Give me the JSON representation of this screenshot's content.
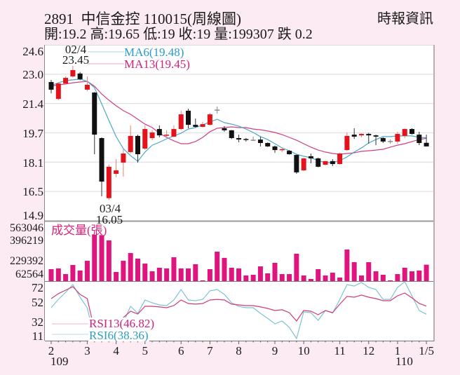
{
  "header": {
    "title": "2891  中信金控 110015(周線圖)",
    "source": "時報資訊",
    "quote": "開:19.2 高:19.65 低:19 收:19 量:199307 跌 0.2"
  },
  "colors": {
    "background": "#fcebf2",
    "plot_background": "#ffffff",
    "up": "#e3121b",
    "up_wick": "#ef7f6f",
    "down": "#111111",
    "down_wick": "#333333",
    "flat": "#8a8a8a",
    "ma6": "#4ba7c7",
    "ma13": "#cf3f84",
    "ma6_text": "#2c9cc5",
    "ma13_text": "#d1207a",
    "volume": "#e0147e",
    "volume_title": "#d8207a",
    "rsi6": "#7ec3d3",
    "rsi13": "#cf3c78",
    "rsi6_text": "#2c9cc5",
    "rsi13_text": "#d1207a",
    "grid": "#e4e4e4"
  },
  "chart_data": [
    {
      "type": "candlestick",
      "title": "2891 中信金控 110015(周線圖)",
      "xlabel": "",
      "ylabel": "",
      "ylim": [
        14.9,
        24.6
      ],
      "yticks": [
        "24.6",
        "23.0",
        "21.4",
        "19.7",
        "18.1",
        "16.5",
        "14.9"
      ],
      "grid": true,
      "legend": [
        {
          "name": "MA6",
          "label": "MA6(19.48)",
          "value": 19.48
        },
        {
          "name": "MA13",
          "label": "MA13(19.45)",
          "value": 19.45
        }
      ],
      "annotations": [
        {
          "date": "02/4",
          "value": "23.45",
          "type": "high"
        },
        {
          "date": "03/4",
          "value": "16.05",
          "type": "low"
        }
      ],
      "ohlc_fields": [
        "open",
        "high",
        "low",
        "close"
      ],
      "ohlc": [
        [
          22.55,
          22.67,
          21.93,
          22.13
        ],
        [
          21.62,
          22.51,
          21.55,
          22.47
        ],
        [
          22.47,
          22.85,
          22.4,
          22.78
        ],
        [
          22.86,
          23.45,
          22.8,
          23.21
        ],
        [
          23.02,
          23.1,
          22.65,
          22.71
        ],
        [
          22.13,
          22.86,
          22.05,
          22.4
        ],
        [
          21.97,
          22.0,
          18.57,
          19.65
        ],
        [
          19.46,
          19.5,
          16.25,
          17.06
        ],
        [
          16.15,
          18.0,
          16.05,
          17.88
        ],
        [
          17.49,
          18.3,
          17.3,
          17.68
        ],
        [
          18.11,
          18.85,
          17.33,
          18.61
        ],
        [
          18.69,
          20.16,
          18.6,
          19.58
        ],
        [
          19.58,
          19.65,
          18.11,
          18.57
        ],
        [
          18.88,
          20.16,
          18.8,
          19.96
        ],
        [
          19.46,
          19.9,
          19.34,
          19.77
        ],
        [
          19.96,
          20.16,
          19.5,
          19.61
        ],
        [
          19.6,
          19.89,
          19.5,
          19.62
        ],
        [
          19.54,
          20.16,
          19.5,
          19.96
        ],
        [
          19.96,
          20.97,
          19.9,
          20.77
        ],
        [
          20.97,
          21.08,
          20.0,
          20.19
        ],
        [
          20.19,
          20.54,
          20.05,
          20.08
        ],
        [
          20.08,
          20.35,
          20.05,
          20.23
        ],
        [
          20.19,
          20.85,
          20.15,
          20.77
        ],
        [
          21.0,
          21.2,
          20.81,
          21.0
        ],
        [
          20.0,
          20.12,
          19.81,
          19.89
        ],
        [
          19.89,
          19.9,
          19.4,
          19.46
        ],
        [
          19.46,
          19.65,
          19.23,
          19.38
        ],
        [
          19.38,
          19.46,
          19.27,
          19.34
        ],
        [
          19.34,
          19.54,
          19.3,
          19.34
        ],
        [
          19.38,
          19.54,
          19.0,
          19.19
        ],
        [
          19.19,
          19.22,
          18.97,
          19.0
        ],
        [
          19.0,
          19.05,
          18.65,
          18.8
        ],
        [
          18.8,
          18.92,
          18.69,
          18.82
        ],
        [
          18.76,
          18.8,
          18.55,
          18.57
        ],
        [
          18.53,
          18.55,
          17.49,
          17.57
        ],
        [
          17.68,
          18.38,
          17.65,
          18.34
        ],
        [
          18.46,
          18.61,
          18.07,
          18.34
        ],
        [
          18.34,
          18.38,
          17.85,
          17.88
        ],
        [
          17.99,
          18.2,
          17.95,
          18.19
        ],
        [
          18.19,
          18.3,
          17.92,
          18.03
        ],
        [
          18.03,
          18.65,
          18.0,
          18.61
        ],
        [
          18.8,
          19.77,
          18.75,
          19.58
        ],
        [
          19.65,
          20.0,
          19.42,
          19.54
        ],
        [
          19.61,
          19.72,
          19.5,
          19.69
        ],
        [
          19.69,
          19.75,
          19.15,
          19.61
        ],
        [
          19.61,
          19.65,
          19.07,
          19.54
        ],
        [
          19.46,
          19.5,
          19.19,
          19.27
        ],
        [
          19.27,
          19.38,
          19.15,
          19.27
        ],
        [
          19.27,
          19.81,
          19.15,
          19.69
        ],
        [
          19.58,
          20.0,
          19.46,
          19.96
        ],
        [
          19.96,
          20.0,
          19.65,
          19.69
        ],
        [
          19.65,
          19.81,
          19.07,
          19.19
        ],
        [
          19.2,
          19.65,
          19.0,
          19.0
        ]
      ],
      "series": [
        {
          "name": "MA6",
          "values": [
            22.36,
            22.51,
            22.63,
            22.67,
            22.71,
            22.59,
            22.24,
            21.35,
            20.43,
            19.54,
            18.88,
            18.49,
            18.18,
            18.69,
            19.07,
            19.23,
            19.42,
            19.58,
            19.73,
            19.96,
            20.04,
            20.19,
            20.35,
            20.5,
            20.31,
            20.23,
            20.12,
            19.96,
            19.77,
            19.54,
            19.38,
            19.15,
            18.92,
            18.76,
            18.57,
            18.46,
            18.38,
            18.22,
            18.11,
            18.11,
            18.22,
            18.42,
            18.69,
            18.92,
            19.19,
            19.38,
            19.54,
            19.54,
            19.58,
            19.58,
            19.58,
            19.5,
            19.48
          ]
        },
        {
          "name": "MA13",
          "values": [
            22.32,
            22.4,
            22.44,
            22.51,
            22.55,
            22.59,
            22.32,
            21.89,
            21.55,
            21.24,
            20.97,
            20.77,
            20.5,
            20.23,
            20.04,
            19.73,
            19.5,
            19.31,
            19.15,
            19.15,
            19.27,
            19.5,
            19.81,
            20.0,
            20.04,
            20.08,
            20.04,
            20.04,
            19.96,
            19.92,
            19.85,
            19.77,
            19.65,
            19.5,
            19.34,
            19.15,
            18.96,
            18.8,
            18.69,
            18.61,
            18.57,
            18.61,
            18.65,
            18.73,
            18.76,
            18.8,
            18.84,
            18.96,
            19.07,
            19.15,
            19.27,
            19.38,
            19.45
          ]
        }
      ]
    },
    {
      "type": "bar",
      "title": "成交量(張)",
      "ylabel": "成交量(張)",
      "ylim": [
        0,
        563046
      ],
      "yticks": [
        "563046",
        "396219",
        "229392",
        "62564"
      ],
      "values": [
        145000,
        154000,
        85000,
        196000,
        128000,
        247000,
        563046,
        560000,
        495000,
        111000,
        247000,
        341000,
        273000,
        213000,
        119000,
        162000,
        154000,
        290000,
        154000,
        154000,
        205000,
        9000,
        145000,
        358000,
        282000,
        162000,
        154000,
        68000,
        77000,
        179000,
        94000,
        222000,
        85000,
        85000,
        333000,
        68000,
        26000,
        145000,
        68000,
        102000,
        43000,
        384000,
        230000,
        68000,
        230000,
        119000,
        77000,
        9000,
        85000,
        162000,
        119000,
        128000,
        199307
      ]
    },
    {
      "type": "line",
      "title": "RSI",
      "ylim": [
        11,
        72
      ],
      "yticks": [
        "72",
        "52",
        "32",
        "11"
      ],
      "legend": [
        {
          "name": "RSI13",
          "label": "RSI13(46.82)",
          "value": 46.82
        },
        {
          "name": "RSI6",
          "label": "RSI6(38.36)",
          "value": 38.36
        }
      ],
      "xticks": [
        {
          "label": "2",
          "sub": "109",
          "index": 0
        },
        {
          "label": "3",
          "index": 5
        },
        {
          "label": "4",
          "index": 9
        },
        {
          "label": "5",
          "index": 13
        },
        {
          "label": "6",
          "index": 18
        },
        {
          "label": "7",
          "index": 22
        },
        {
          "label": "8",
          "index": 26
        },
        {
          "label": "9",
          "index": 31
        },
        {
          "label": "10",
          "index": 35
        },
        {
          "label": "11",
          "index": 40
        },
        {
          "label": "12",
          "index": 44
        },
        {
          "label": "1",
          "sub": "110",
          "index": 48
        },
        {
          "label": "1/5",
          "index": 52
        }
      ],
      "series": [
        {
          "name": "RSI13",
          "values": [
            54.6,
            59.7,
            63.3,
            66.9,
            58.9,
            54.6,
            22,
            16,
            22,
            27,
            35.0,
            41.5,
            38.6,
            46.6,
            46.6,
            45.9,
            45.1,
            47.3,
            53.1,
            49.5,
            48.8,
            49.5,
            53.1,
            53.8,
            53.1,
            48.8,
            48.0,
            47.3,
            47.3,
            45.9,
            44.4,
            42.2,
            43.0,
            40.0,
            31.3,
            42.2,
            41.5,
            37.9,
            42.2,
            40.0,
            48.8,
            56.8,
            56.0,
            58.2,
            56.0,
            54.6,
            52.4,
            52.4,
            57.5,
            60.4,
            55.3,
            49.5,
            46.82
          ]
        },
        {
          "name": "RSI6",
          "values": [
            45.1,
            53.8,
            61.1,
            69.1,
            56.0,
            45.0,
            14,
            11,
            14,
            20,
            30,
            46.6,
            39.3,
            53.1,
            50.2,
            48.0,
            47.3,
            53.1,
            64.0,
            53.1,
            52.4,
            53.8,
            62.6,
            64.0,
            58.9,
            50.2,
            46.6,
            45.1,
            45.1,
            39.3,
            34.2,
            28.4,
            31.3,
            24.8,
            13.2,
            40.8,
            40.0,
            32.1,
            42.2,
            39.6,
            53.8,
            69.1,
            67.6,
            71.3,
            66.2,
            64.0,
            53.8,
            53.8,
            66.2,
            72.0,
            57.5,
            42.2,
            38.36
          ]
        }
      ]
    }
  ]
}
